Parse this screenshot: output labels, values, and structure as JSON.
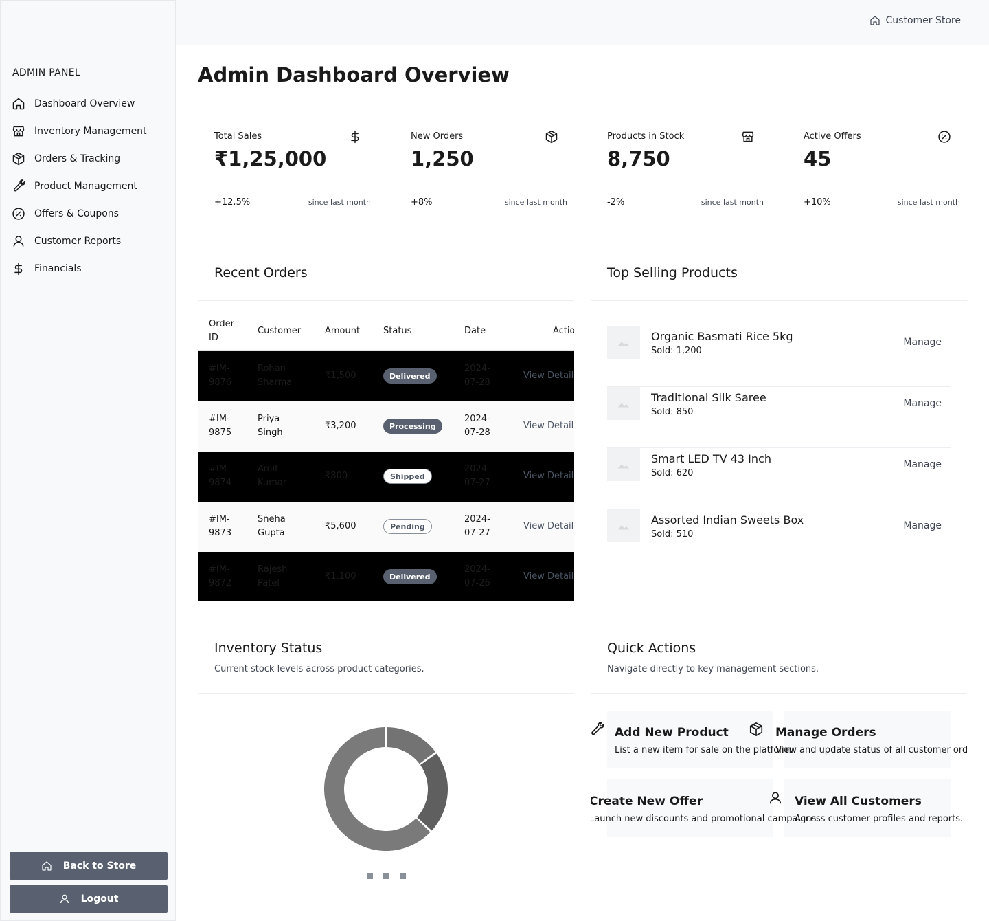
{
  "sidebar": {
    "panel_title": "ADMIN PANEL",
    "items": [
      {
        "label": "Dashboard Overview",
        "icon": "home-icon"
      },
      {
        "label": "Inventory Management",
        "icon": "store-icon"
      },
      {
        "label": "Orders & Tracking",
        "icon": "package-icon"
      },
      {
        "label": "Product Management",
        "icon": "wrench-icon"
      },
      {
        "label": "Offers & Coupons",
        "icon": "percent-icon"
      },
      {
        "label": "Customer Reports",
        "icon": "user-icon"
      },
      {
        "label": "Financials",
        "icon": "dollar-icon"
      }
    ],
    "back_label": "Back to Store",
    "logout_label": "Logout"
  },
  "header": {
    "store_link": "Customer Store"
  },
  "page_title": "Admin Dashboard Overview",
  "stats": [
    {
      "label": "Total Sales",
      "value": "₹1,25,000",
      "change": "+12.5%",
      "since": "since last month",
      "icon": "dollar-icon"
    },
    {
      "label": "New Orders",
      "value": "1,250",
      "change": "+8%",
      "since": "since last month",
      "icon": "package-icon"
    },
    {
      "label": "Products in Stock",
      "value": "8,750",
      "change": "-2%",
      "since": "since last month",
      "icon": "store-icon"
    },
    {
      "label": "Active Offers",
      "value": "45",
      "change": "+10%",
      "since": "since last month",
      "icon": "percent-icon"
    }
  ],
  "recent_orders": {
    "title": "Recent Orders",
    "columns": [
      "Order ID",
      "Customer",
      "Amount",
      "Status",
      "Date",
      "Actions"
    ],
    "rows": [
      {
        "id": "#IM-9876",
        "customer": "Rohan Sharma",
        "amount": "₹1,500",
        "status": "Delivered",
        "date": "2024-07-28",
        "action": "View Details"
      },
      {
        "id": "#IM-9875",
        "customer": "Priya Singh",
        "amount": "₹3,200",
        "status": "Processing",
        "date": "2024-07-28",
        "action": "View Details"
      },
      {
        "id": "#IM-9874",
        "customer": "Amit Kumar",
        "amount": "₹800",
        "status": "Shipped",
        "date": "2024-07-27",
        "action": "View Details"
      },
      {
        "id": "#IM-9873",
        "customer": "Sneha Gupta",
        "amount": "₹5,600",
        "status": "Pending",
        "date": "2024-07-27",
        "action": "View Details"
      },
      {
        "id": "#IM-9872",
        "customer": "Rajesh Patel",
        "amount": "₹1,100",
        "status": "Delivered",
        "date": "2024-07-26",
        "action": "View Details"
      }
    ]
  },
  "top_products": {
    "title": "Top Selling Products",
    "manage_label": "Manage",
    "items": [
      {
        "name": "Organic Basmati Rice 5kg",
        "sold": "Sold: 1,200"
      },
      {
        "name": "Traditional Silk Saree",
        "sold": "Sold: 850"
      },
      {
        "name": "Smart LED TV 43 Inch",
        "sold": "Sold: 620"
      },
      {
        "name": "Assorted Indian Sweets Box",
        "sold": "Sold: 510"
      }
    ]
  },
  "inventory": {
    "title": "Inventory Status",
    "subtitle": "Current stock levels across product categories."
  },
  "quick_actions": {
    "title": "Quick Actions",
    "subtitle": "Navigate directly to key management sections.",
    "items": [
      {
        "title": "Add New Product",
        "desc": "List a new item for sale on the platform.",
        "icon": "wrench-icon"
      },
      {
        "title": "Manage Orders",
        "desc": "View and update status of all customer orders.",
        "icon": "package-icon"
      },
      {
        "title": "Create New Offer",
        "desc": "Launch new discounts and promotional campaigns.",
        "icon": "percent-icon"
      },
      {
        "title": "View All Customers",
        "desc": "Access customer profiles and reports.",
        "icon": "user-icon"
      }
    ]
  },
  "chart_data": {
    "type": "pie",
    "donut": true,
    "values": [
      15,
      22,
      63
    ],
    "colors": [
      "#737373",
      "#5f5f5f",
      "#7a7a7a"
    ],
    "legend_count": 3
  },
  "colors": {
    "accent": "#596170",
    "sidebar_bg": "#f8f9fb",
    "dark_row": "#000000"
  }
}
